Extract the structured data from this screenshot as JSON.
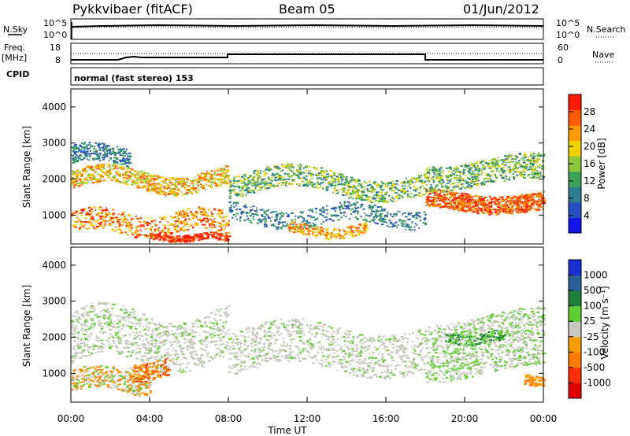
{
  "header": {
    "station": "Pykkvibaer (fitACF)",
    "beam": "Beam 05",
    "date": "01/Jun/2012"
  },
  "noise_panel": {
    "left_label": "N.Sky",
    "right_label": "N.Search",
    "left_ticks": [
      "10^5",
      "10^0"
    ],
    "right_ticks": [
      "10^5",
      "10^0"
    ]
  },
  "freq_panel": {
    "left_label_line1": "Freq.",
    "left_label_line2": "[MHz]",
    "right_label": "Nave",
    "left_ticks": [
      "18",
      "8"
    ],
    "right_ticks": [
      "60",
      "0"
    ]
  },
  "cpid": {
    "label": "CPID",
    "mode": "normal (fast stereo) 153"
  },
  "colors": {
    "power_scale": [
      "#1414e6",
      "#2a4fbf",
      "#2e7d8f",
      "#3aa05a",
      "#8cc63a",
      "#f0d000",
      "#ff9a00",
      "#ff5a00",
      "#ff1a00"
    ],
    "velocity_scale": [
      "#1a2fd0",
      "#2a5f9a",
      "#1f7f3a",
      "#5fcf2f",
      "#c8c8c0",
      "#f5a000",
      "#ff7a00",
      "#ff3000",
      "#e00000"
    ],
    "velocity_ground": "#c8c8c0"
  },
  "chart_data": [
    {
      "type": "heatmap",
      "ylabel": "Slant Range [km]",
      "xlabel": "",
      "y_ticks": [
        "1000",
        "2000",
        "3000",
        "4000"
      ],
      "ylim": [
        200,
        4500
      ],
      "x_ticks": [
        "00:00",
        "04:00",
        "08:00",
        "12:00",
        "16:00",
        "20:00",
        "00:00"
      ],
      "xlim": [
        0,
        24
      ],
      "colorbar": {
        "label": "Power [dB]",
        "ticks": [
          "28",
          "24",
          "20",
          "16",
          "12",
          "8",
          "4"
        ],
        "range": [
          0,
          30
        ]
      }
    },
    {
      "type": "heatmap",
      "ylabel": "Slant Range [km]",
      "xlabel": "Time UT",
      "y_ticks": [
        "1000",
        "2000",
        "3000",
        "4000"
      ],
      "ylim": [
        200,
        4500
      ],
      "x_ticks": [
        "00:00",
        "04:00",
        "08:00",
        "12:00",
        "16:00",
        "20:00",
        "00:00"
      ],
      "xlim": [
        0,
        24
      ],
      "colorbar": {
        "label": "Velocity [m s⁻¹]",
        "ticks": [
          "1000",
          "500",
          "100",
          "25",
          "-25",
          "-100",
          "-500",
          "-1000"
        ]
      }
    }
  ]
}
